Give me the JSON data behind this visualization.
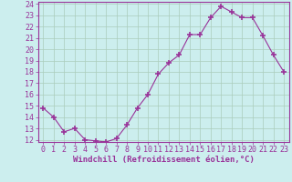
{
  "x": [
    0,
    1,
    2,
    3,
    4,
    5,
    6,
    7,
    8,
    9,
    10,
    11,
    12,
    13,
    14,
    15,
    16,
    17,
    18,
    19,
    20,
    21,
    22,
    23
  ],
  "y": [
    14.8,
    14.0,
    12.7,
    13.0,
    12.0,
    11.9,
    11.8,
    12.1,
    13.3,
    14.8,
    16.0,
    17.8,
    18.8,
    19.5,
    21.3,
    21.3,
    22.8,
    23.8,
    23.3,
    22.8,
    22.8,
    21.2,
    19.5,
    18.0
  ],
  "line_color": "#993399",
  "marker": "+",
  "marker_size": 4,
  "bg_color": "#cceeee",
  "grid_color": "#aaccbb",
  "xlabel": "Windchill (Refroidissement éolien,°C)",
  "ylim": [
    12,
    24
  ],
  "xlim": [
    0,
    23
  ],
  "yticks": [
    12,
    13,
    14,
    15,
    16,
    17,
    18,
    19,
    20,
    21,
    22,
    23,
    24
  ],
  "xticks": [
    0,
    1,
    2,
    3,
    4,
    5,
    6,
    7,
    8,
    9,
    10,
    11,
    12,
    13,
    14,
    15,
    16,
    17,
    18,
    19,
    20,
    21,
    22,
    23
  ],
  "xlabel_fontsize": 6.5,
  "tick_fontsize": 6,
  "tick_color": "#993399",
  "axis_color": "#993399",
  "spine_color": "#993399"
}
